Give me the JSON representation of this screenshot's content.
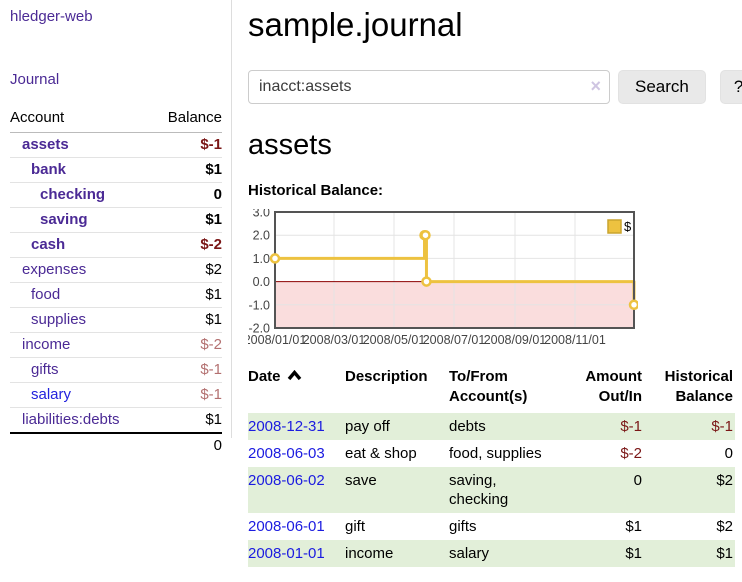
{
  "app": {
    "name": "hledger-web",
    "nav_journal": "Journal"
  },
  "sidebar": {
    "accounts_header": {
      "account": "Account",
      "balance": "Balance"
    },
    "accounts": [
      {
        "name": "assets",
        "indent": 1,
        "bold": true,
        "balance": "$-1",
        "balance_style": "neg-strong"
      },
      {
        "name": "bank",
        "indent": 2,
        "bold": true,
        "balance": "$1",
        "balance_style": "pos"
      },
      {
        "name": "checking",
        "indent": 3,
        "bold": true,
        "balance": "0",
        "balance_style": "pos"
      },
      {
        "name": "saving",
        "indent": 3,
        "bold": true,
        "balance": "$1",
        "balance_style": "pos"
      },
      {
        "name": "cash",
        "indent": 2,
        "bold": true,
        "balance": "$-2",
        "balance_style": "neg-strong"
      },
      {
        "name": "expenses",
        "indent": 1,
        "bold": false,
        "balance": "$2",
        "balance_style": "pos"
      },
      {
        "name": "food",
        "indent": 2,
        "bold": false,
        "balance": "$1",
        "balance_style": "pos"
      },
      {
        "name": "supplies",
        "indent": 2,
        "bold": false,
        "balance": "$1",
        "balance_style": "pos"
      },
      {
        "name": "income",
        "indent": 1,
        "bold": false,
        "balance": "$-2",
        "balance_style": "neg-muted"
      },
      {
        "name": "gifts",
        "indent": 2,
        "bold": false,
        "balance": "$-1",
        "balance_style": "neg-muted"
      },
      {
        "name": "salary",
        "indent": 2,
        "bold": false,
        "link_color": "blue",
        "balance": "$-1",
        "balance_style": "neg-muted"
      },
      {
        "name": "liabilities:debts",
        "indent": 1,
        "bold": false,
        "balance": "$1",
        "balance_style": "pos"
      }
    ],
    "total": "0"
  },
  "header": {
    "title": "sample.journal"
  },
  "search": {
    "value": "inacct:assets",
    "clear_icon": "×",
    "button": "Search",
    "help_button": "?"
  },
  "account_page": {
    "title": "assets",
    "chart_label": "Historical Balance:"
  },
  "chart_data": {
    "type": "line",
    "style": "step",
    "title": "Historical Balance",
    "series": [
      {
        "name": "$",
        "points": [
          [
            "2008-01-01",
            1
          ],
          [
            "2008-06-01",
            2
          ],
          [
            "2008-06-02",
            2
          ],
          [
            "2008-06-03",
            0
          ],
          [
            "2008-12-31",
            -1
          ]
        ]
      }
    ],
    "xlim": [
      "2008-01-01",
      "2008-12-31"
    ],
    "ylim": [
      -2,
      3
    ],
    "yticks": [
      {
        "label": "3.0",
        "value": 3
      },
      {
        "label": "2.0",
        "value": 2
      },
      {
        "label": "1.0",
        "value": 1
      },
      {
        "label": "0.0",
        "value": 0
      },
      {
        "label": "-1.0",
        "value": -1
      },
      {
        "label": "-2.0",
        "value": -2
      }
    ],
    "xticks": [
      {
        "label": "2008/01/01",
        "date": "2008-01-01"
      },
      {
        "label": "2008/03/01",
        "date": "2008-03-01"
      },
      {
        "label": "2008/05/01",
        "date": "2008-05-01"
      },
      {
        "label": "2008/07/01",
        "date": "2008-07-01"
      },
      {
        "label": "2008/09/01",
        "date": "2008-09-01"
      },
      {
        "label": "2008/11/01",
        "date": "2008-11-01"
      }
    ],
    "legend": {
      "label": "$",
      "position": "top-right"
    },
    "grid": true,
    "negative_region_highlighted": true,
    "line_color": "#edc240",
    "point_fill": "#ffffff",
    "negative_fill": "#fadddd",
    "zero_line_color": "#8b0000",
    "grid_color": "#e4e4e4",
    "border_color": "#545454",
    "tick_text_color": "#444444"
  },
  "register": {
    "columns": [
      {
        "label": "Date",
        "sorted": "asc"
      },
      {
        "label": "Description"
      },
      {
        "label": "To/From Account(s)"
      },
      {
        "label": "Amount Out/In",
        "align": "right"
      },
      {
        "label": "Historical Balance",
        "align": "right"
      }
    ],
    "rows": [
      {
        "date": "2008-12-31",
        "description": "pay off",
        "accounts": "debts",
        "amount": "$-1",
        "amount_neg": true,
        "balance": "$-1",
        "balance_neg": true,
        "green": true
      },
      {
        "date": "2008-06-03",
        "description": "eat & shop",
        "accounts": "food, supplies",
        "amount": "$-2",
        "amount_neg": true,
        "balance": "0",
        "balance_neg": false,
        "green": false
      },
      {
        "date": "2008-06-02",
        "description": "save",
        "accounts": "saving, checking",
        "amount": "0",
        "amount_neg": false,
        "balance": "$2",
        "balance_neg": false,
        "green": true
      },
      {
        "date": "2008-06-01",
        "description": "gift",
        "accounts": "gifts",
        "amount": "$1",
        "amount_neg": false,
        "balance": "$2",
        "balance_neg": false,
        "green": false
      },
      {
        "date": "2008-01-01",
        "description": "income",
        "accounts": "salary",
        "amount": "$1",
        "amount_neg": false,
        "balance": "$1",
        "balance_neg": false,
        "green": true
      }
    ]
  },
  "colors": {
    "accent_purple": "#4b2a95",
    "link_blue": "#1b1be0",
    "sidebar_blue_link": "#2222dd",
    "negative_strong": "#7a1616",
    "negative_muted": "#b37070",
    "row_green": "#e2efd9"
  }
}
